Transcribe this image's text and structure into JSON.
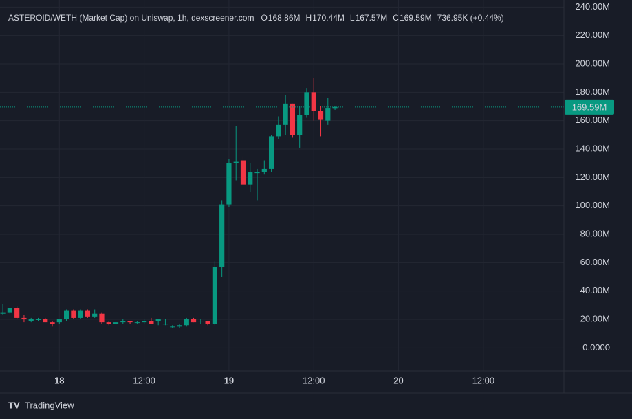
{
  "chart_data": {
    "type": "candlestick",
    "title": "ASTEROID/WETH (Market Cap) on Uniswap, 1h, dexscreener.com",
    "ohlc_legend": [
      {
        "key": "O",
        "value": "168.86M"
      },
      {
        "key": "H",
        "value": "170.44M"
      },
      {
        "key": "L",
        "value": "167.57M"
      },
      {
        "key": "C",
        "value": "169.59M"
      }
    ],
    "change": "736.95K (+0.44%)",
    "last_price_label": "169.59M",
    "brand": "TradingView",
    "up_color": "#089981",
    "down_color": "#f23645",
    "x": [
      -8,
      -7,
      -6,
      -5,
      -4,
      -3,
      -2,
      -1,
      0,
      1,
      2,
      3,
      4,
      5,
      6,
      7,
      8,
      9,
      10,
      11,
      12,
      13,
      14,
      15,
      16,
      17,
      18,
      19,
      20,
      21,
      22,
      23,
      24,
      25,
      26,
      27,
      28,
      29,
      30,
      31,
      32,
      33,
      34,
      35,
      36,
      37,
      38,
      39
    ],
    "open": [
      24,
      25,
      28,
      21,
      19,
      20,
      20,
      18,
      18,
      20,
      26,
      21,
      26,
      22,
      24,
      18,
      17,
      18,
      19,
      18,
      18,
      19,
      19,
      17,
      15,
      15,
      16,
      20,
      19,
      19,
      17,
      57,
      101,
      130,
      132,
      115,
      123,
      124,
      126,
      149,
      157,
      172,
      150,
      164,
      180,
      167,
      160,
      168.86
    ],
    "high": [
      31,
      28,
      29,
      23,
      21,
      21,
      21,
      19,
      20,
      27,
      27,
      27,
      27,
      27,
      25,
      19,
      19,
      20,
      19,
      19,
      20,
      21,
      20,
      20,
      16,
      17,
      21,
      21,
      20,
      19,
      61,
      104,
      133,
      156,
      135,
      130,
      126,
      132,
      150,
      163,
      178,
      172,
      170,
      183,
      190,
      170,
      176,
      170.44
    ],
    "low": [
      23,
      24,
      20,
      18,
      18,
      19,
      18,
      15,
      17,
      19,
      20,
      20,
      21,
      21,
      17,
      16,
      16,
      17,
      17,
      17,
      17,
      17,
      16,
      16,
      14,
      14,
      15,
      18,
      17,
      16,
      16,
      50,
      99,
      118,
      115,
      110,
      104,
      122,
      124,
      147,
      150,
      148,
      141,
      162,
      160,
      149,
      157,
      167.57
    ],
    "close": [
      25,
      28,
      21,
      20,
      20,
      20,
      18,
      17,
      20,
      26,
      21,
      26,
      22,
      24,
      18,
      17,
      18,
      19,
      18,
      18,
      19,
      17,
      20,
      17,
      15,
      16,
      20,
      18,
      19,
      17,
      57,
      101,
      130,
      131,
      115,
      124,
      124,
      126,
      149,
      157,
      172,
      150,
      164,
      180,
      167,
      161,
      169,
      169.59
    ],
    "xlim": [
      -8.4,
      71.4
    ],
    "xticks": [
      {
        "value": 0,
        "label": "18"
      },
      {
        "value": 12,
        "label": "12:00"
      },
      {
        "value": 24,
        "label": "19"
      },
      {
        "value": 36,
        "label": "12:00"
      },
      {
        "value": 48,
        "label": "20"
      },
      {
        "value": 60,
        "label": "12:00"
      }
    ],
    "ylim": [
      -16.3,
      245
    ],
    "yticks": [
      {
        "value": 0,
        "label": "0.0000"
      },
      {
        "value": 20,
        "label": "20.00M"
      },
      {
        "value": 40,
        "label": "40.00M"
      },
      {
        "value": 60,
        "label": "60.00M"
      },
      {
        "value": 80,
        "label": "80.00M"
      },
      {
        "value": 100,
        "label": "100.00M"
      },
      {
        "value": 120,
        "label": "120.00M"
      },
      {
        "value": 140,
        "label": "140.00M"
      },
      {
        "value": 160,
        "label": "160.00M"
      },
      {
        "value": 180,
        "label": "180.00M"
      },
      {
        "value": 200,
        "label": "200.00M"
      },
      {
        "value": 220,
        "label": "220.00M"
      },
      {
        "value": 240,
        "label": "240.00M"
      }
    ],
    "grid": true
  }
}
